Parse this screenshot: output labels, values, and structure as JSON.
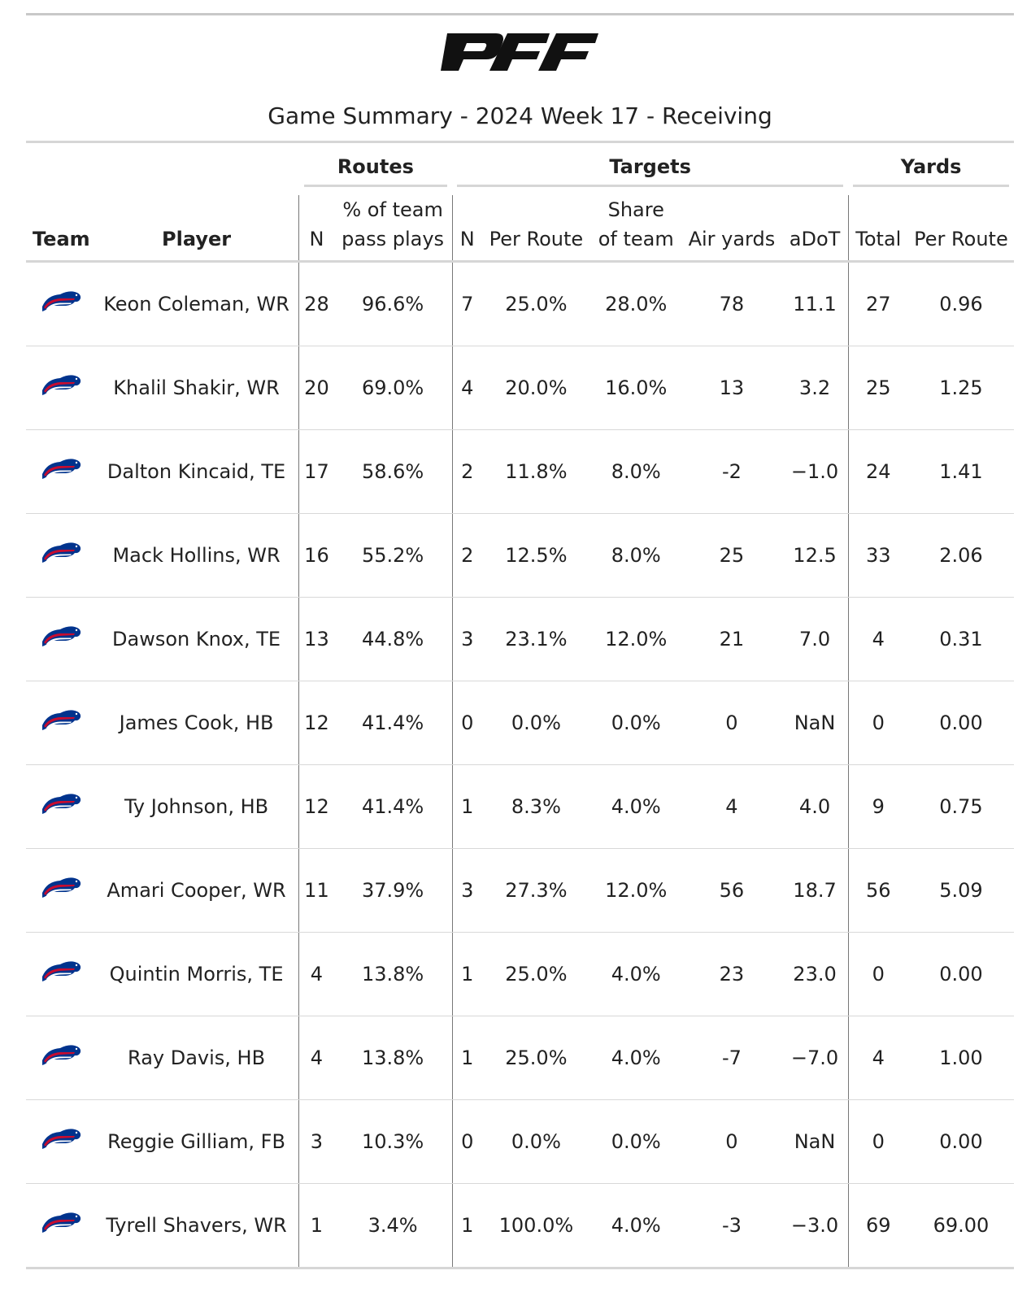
{
  "brand": {
    "logo_text": "PFF",
    "row_logo": "bills-logo",
    "colors": {
      "bills_blue": "#00338D",
      "bills_red": "#C60C30"
    }
  },
  "title": "Game Summary - 2024 Week 17 - Receiving",
  "groups": {
    "routes": "Routes",
    "targets": "Targets",
    "yards": "Yards"
  },
  "columns": {
    "team": "Team",
    "player": "Player",
    "routes_n": "N",
    "routes_pct_l1": "% of team",
    "routes_pct_l2": "pass plays",
    "targets_n": "N",
    "targets_per_route": "Per Route",
    "targets_share_l1": "Share",
    "targets_share_l2": "of team",
    "air_yards": "Air yards",
    "adot": "aDoT",
    "yards_total": "Total",
    "yards_per_route": "Per Route"
  },
  "rows": [
    {
      "player": "Keon Coleman, WR",
      "routes_n": "28",
      "routes_pct": "96.6%",
      "targets_n": "7",
      "targets_per_route": "25.0%",
      "share": "28.0%",
      "air_yards": "78",
      "adot": "11.1",
      "yards_total": "27",
      "yards_per_route": "0.96"
    },
    {
      "player": "Khalil Shakir, WR",
      "routes_n": "20",
      "routes_pct": "69.0%",
      "targets_n": "4",
      "targets_per_route": "20.0%",
      "share": "16.0%",
      "air_yards": "13",
      "adot": "3.2",
      "yards_total": "25",
      "yards_per_route": "1.25"
    },
    {
      "player": "Dalton Kincaid, TE",
      "routes_n": "17",
      "routes_pct": "58.6%",
      "targets_n": "2",
      "targets_per_route": "11.8%",
      "share": "8.0%",
      "air_yards": "-2",
      "adot": "−1.0",
      "yards_total": "24",
      "yards_per_route": "1.41"
    },
    {
      "player": "Mack Hollins, WR",
      "routes_n": "16",
      "routes_pct": "55.2%",
      "targets_n": "2",
      "targets_per_route": "12.5%",
      "share": "8.0%",
      "air_yards": "25",
      "adot": "12.5",
      "yards_total": "33",
      "yards_per_route": "2.06"
    },
    {
      "player": "Dawson Knox, TE",
      "routes_n": "13",
      "routes_pct": "44.8%",
      "targets_n": "3",
      "targets_per_route": "23.1%",
      "share": "12.0%",
      "air_yards": "21",
      "adot": "7.0",
      "yards_total": "4",
      "yards_per_route": "0.31"
    },
    {
      "player": "James Cook, HB",
      "routes_n": "12",
      "routes_pct": "41.4%",
      "targets_n": "0",
      "targets_per_route": "0.0%",
      "share": "0.0%",
      "air_yards": "0",
      "adot": "NaN",
      "yards_total": "0",
      "yards_per_route": "0.00"
    },
    {
      "player": "Ty Johnson, HB",
      "routes_n": "12",
      "routes_pct": "41.4%",
      "targets_n": "1",
      "targets_per_route": "8.3%",
      "share": "4.0%",
      "air_yards": "4",
      "adot": "4.0",
      "yards_total": "9",
      "yards_per_route": "0.75"
    },
    {
      "player": "Amari Cooper, WR",
      "routes_n": "11",
      "routes_pct": "37.9%",
      "targets_n": "3",
      "targets_per_route": "27.3%",
      "share": "12.0%",
      "air_yards": "56",
      "adot": "18.7",
      "yards_total": "56",
      "yards_per_route": "5.09"
    },
    {
      "player": "Quintin Morris, TE",
      "routes_n": "4",
      "routes_pct": "13.8%",
      "targets_n": "1",
      "targets_per_route": "25.0%",
      "share": "4.0%",
      "air_yards": "23",
      "adot": "23.0",
      "yards_total": "0",
      "yards_per_route": "0.00"
    },
    {
      "player": "Ray Davis, HB",
      "routes_n": "4",
      "routes_pct": "13.8%",
      "targets_n": "1",
      "targets_per_route": "25.0%",
      "share": "4.0%",
      "air_yards": "-7",
      "adot": "−7.0",
      "yards_total": "4",
      "yards_per_route": "1.00"
    },
    {
      "player": "Reggie Gilliam, FB",
      "routes_n": "3",
      "routes_pct": "10.3%",
      "targets_n": "0",
      "targets_per_route": "0.0%",
      "share": "0.0%",
      "air_yards": "0",
      "adot": "NaN",
      "yards_total": "0",
      "yards_per_route": "0.00"
    },
    {
      "player": "Tyrell Shavers, WR",
      "routes_n": "1",
      "routes_pct": "3.4%",
      "targets_n": "1",
      "targets_per_route": "100.0%",
      "share": "4.0%",
      "air_yards": "-3",
      "adot": "−3.0",
      "yards_total": "69",
      "yards_per_route": "69.00"
    }
  ]
}
